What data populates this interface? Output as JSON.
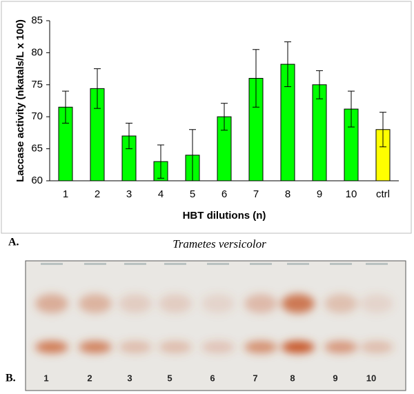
{
  "chart_data": {
    "type": "bar",
    "categories": [
      "1",
      "2",
      "3",
      "4",
      "5",
      "6",
      "7",
      "8",
      "9",
      "10",
      "ctrl"
    ],
    "values": [
      71.5,
      74.4,
      67,
      63,
      64,
      70,
      76,
      78.2,
      75,
      71.2,
      68
    ],
    "errors": [
      2.5,
      3.1,
      2,
      2.6,
      4,
      2.1,
      4.5,
      3.5,
      2.2,
      2.8,
      2.7
    ],
    "colors": [
      "#00ff00",
      "#00ff00",
      "#00ff00",
      "#00ff00",
      "#00ff00",
      "#00ff00",
      "#00ff00",
      "#00ff00",
      "#00ff00",
      "#00ff00",
      "#ffff00"
    ],
    "ylim": [
      60,
      85
    ],
    "yticks": [
      60,
      65,
      70,
      75,
      80,
      85
    ],
    "ylabel": "Laccase activity (nkatals/L x 100)",
    "xlabel": "HBT dilutions (n)"
  },
  "panels": [
    "A.",
    "B."
  ],
  "gel": {
    "title": "Trametes versicolor",
    "lanes": [
      "1",
      "2",
      "3",
      "5",
      "6",
      "7",
      "8",
      "9",
      "10"
    ]
  }
}
